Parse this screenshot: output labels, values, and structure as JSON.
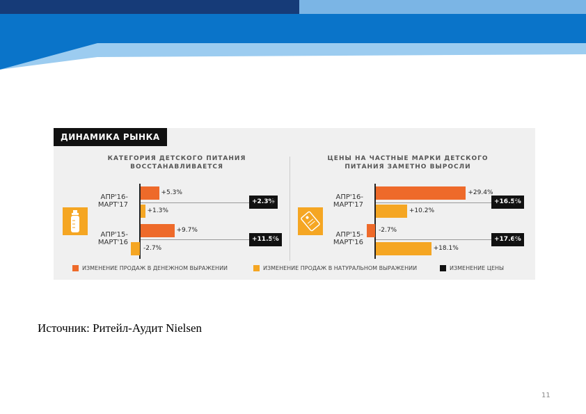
{
  "slide": {
    "source": "Источник: Ритейл-Аудит Nielsen",
    "page_number": "11"
  },
  "colors": {
    "money": "#ee6a2a",
    "units": "#f5a623",
    "price": "#111111",
    "banner_dark": "#0b4fa0",
    "banner_mid": "#0a74c9",
    "banner_light": "#8cc3ec"
  },
  "chart_data": {
    "type": "bar",
    "title": "ДИНАМИКА РЫНКА",
    "legend": [
      {
        "key": "money",
        "label": "ИЗМЕНЕНИЕ ПРОДАЖ В ДЕНЕЖНОМ ВЫРАЖЕНИИ"
      },
      {
        "key": "units",
        "label": "ИЗМЕНЕНИЕ ПРОДАЖ В НАТУРАЛЬНОМ ВЫРАЖЕНИИ"
      },
      {
        "key": "price",
        "label": "ИЗМЕНЕНИЕ ЦЕНЫ"
      }
    ],
    "panels": [
      {
        "title_line1": "КАТЕГОРИЯ ДЕТСКОГО ПИТАНИЯ",
        "title_line2": "ВОССТАНАВЛИВАЕТСЯ",
        "icon": "baby-bottle-icon",
        "currency": "Р",
        "periods": [
          {
            "label_line1": "АПР'16-",
            "label_line2": "МАРТ'17",
            "money": 5.3,
            "money_label": "+5.3%",
            "units": 1.3,
            "units_label": "+1.3%",
            "price_label": "+2.3%"
          },
          {
            "label_line1": "АПР'15-",
            "label_line2": "МАРТ'16",
            "money": 9.7,
            "money_label": "+9.7%",
            "units": -2.7,
            "units_label": "-2.7%",
            "price_label": "+11.5%"
          }
        ]
      },
      {
        "title_line1": "ЦЕНЫ НА ЧАСТНЫЕ МАРКИ ДЕТСКОГО",
        "title_line2": "ПИТАНИЯ ЗАМЕТНО ВЫРОСЛИ",
        "icon": "price-tag-icon",
        "currency": "Р",
        "periods": [
          {
            "label_line1": "АПР'16-",
            "label_line2": "МАРТ'17",
            "money": 29.4,
            "money_label": "+29.4%",
            "units": 10.2,
            "units_label": "+10.2%",
            "price_label": "+16.5%"
          },
          {
            "label_line1": "АПР'15-",
            "label_line2": "МАРТ'16",
            "money": -2.7,
            "money_label": "-2.7%",
            "units": 18.1,
            "units_label": "+18.1%",
            "price_label": "+17.6%"
          }
        ]
      }
    ]
  }
}
